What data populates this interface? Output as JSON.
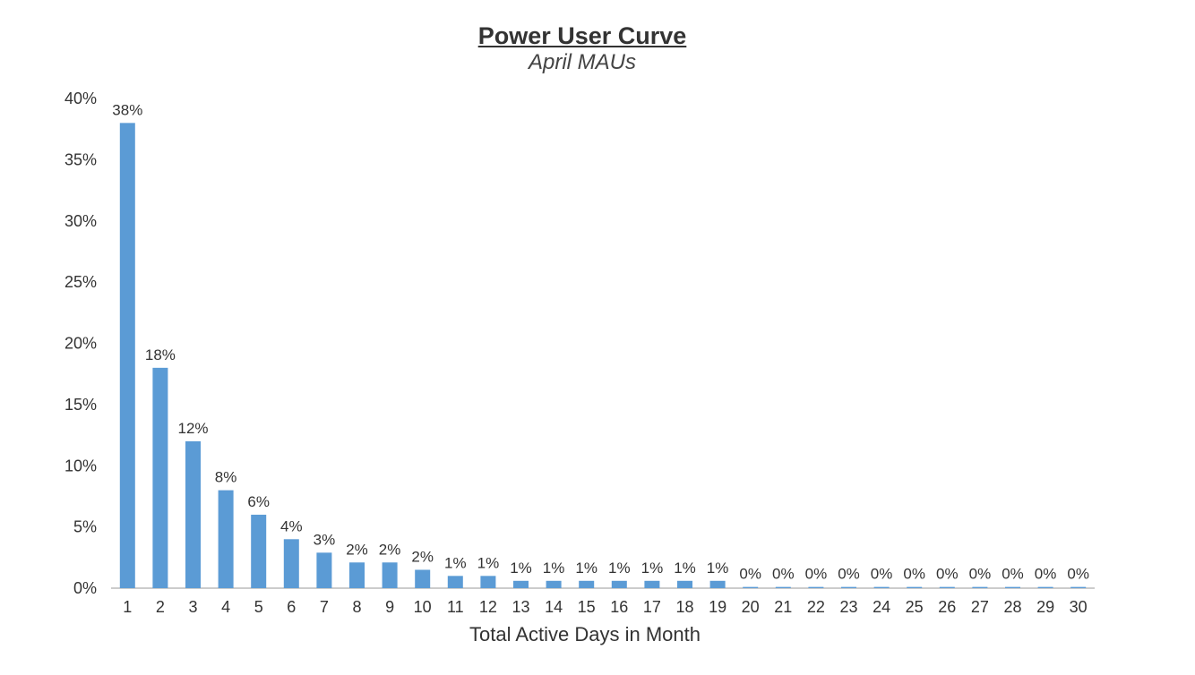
{
  "chart_data": {
    "type": "bar",
    "title": "Power User Curve",
    "subtitle": "April MAUs",
    "xlabel": "Total Active Days in Month",
    "ylabel": "",
    "ylim": [
      0,
      40
    ],
    "y_ticks": [
      "0%",
      "5%",
      "10%",
      "15%",
      "20%",
      "25%",
      "30%",
      "35%",
      "40%"
    ],
    "y_tick_values": [
      0,
      5,
      10,
      15,
      20,
      25,
      30,
      35,
      40
    ],
    "categories": [
      "1",
      "2",
      "3",
      "4",
      "5",
      "6",
      "7",
      "8",
      "9",
      "10",
      "11",
      "12",
      "13",
      "14",
      "15",
      "16",
      "17",
      "18",
      "19",
      "20",
      "21",
      "22",
      "23",
      "24",
      "25",
      "26",
      "27",
      "28",
      "29",
      "30"
    ],
    "values": [
      38,
      18,
      12,
      8,
      6,
      4,
      2.9,
      2.1,
      2.1,
      1.5,
      1,
      1,
      0.6,
      0.6,
      0.6,
      0.6,
      0.6,
      0.6,
      0.6,
      0.1,
      0.1,
      0.1,
      0.1,
      0.1,
      0.1,
      0.1,
      0.1,
      0.1,
      0.1,
      0.1
    ],
    "data_labels": [
      "38%",
      "18%",
      "12%",
      "8%",
      "6%",
      "4%",
      "3%",
      "2%",
      "2%",
      "2%",
      "1%",
      "1%",
      "1%",
      "1%",
      "1%",
      "1%",
      "1%",
      "1%",
      "1%",
      "0%",
      "0%",
      "0%",
      "0%",
      "0%",
      "0%",
      "0%",
      "0%",
      "0%",
      "0%",
      "0%"
    ],
    "bar_color": "#5b9bd5",
    "grid": false,
    "legend": "none"
  }
}
